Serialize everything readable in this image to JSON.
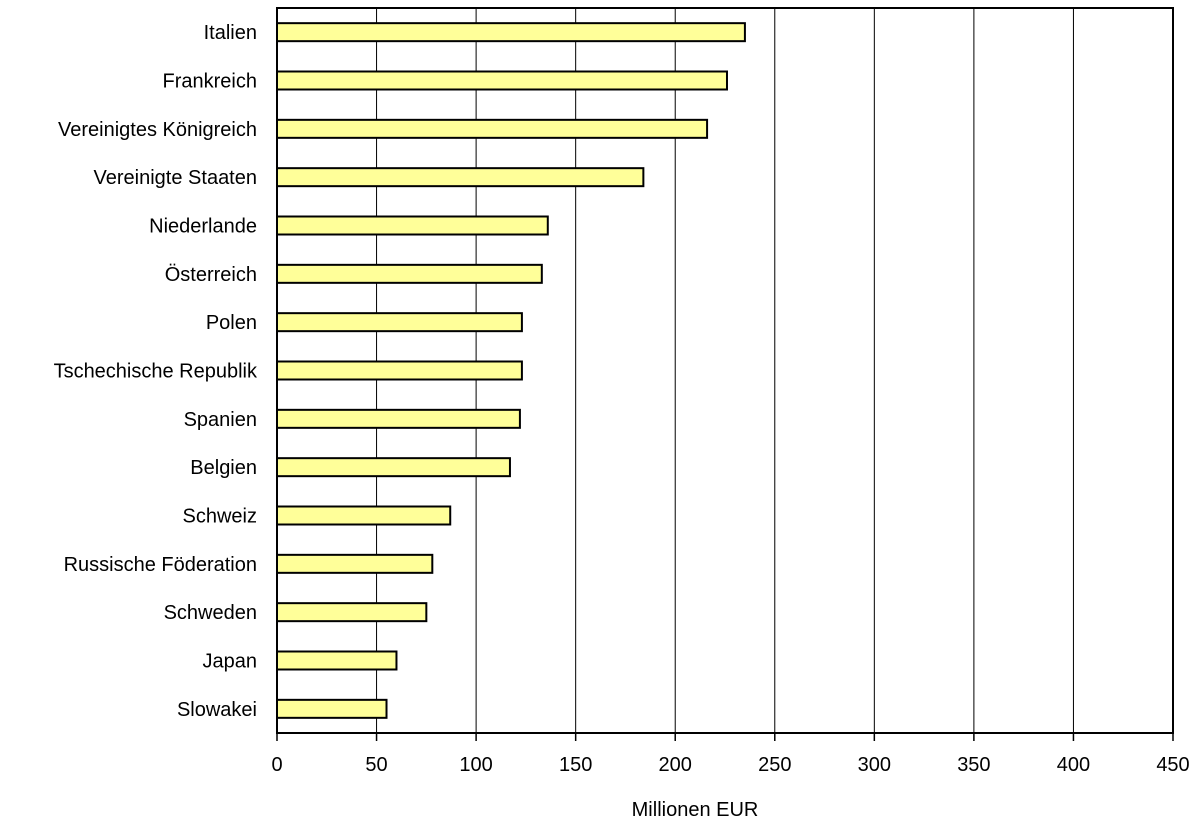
{
  "chart_data": {
    "type": "bar",
    "orientation": "horizontal",
    "categories": [
      "Italien",
      "Frankreich",
      "Vereinigtes Königreich",
      "Vereinigte Staaten",
      "Niederlande",
      "Österreich",
      "Polen",
      "Tschechische Republik",
      "Spanien",
      "Belgien",
      "Schweiz",
      "Russische Föderation",
      "Schweden",
      "Japan",
      "Slowakei"
    ],
    "values": [
      235,
      226,
      216,
      184,
      136,
      133,
      123,
      123,
      122,
      117,
      87,
      78,
      75,
      60,
      55
    ],
    "xlabel": "Millionen EUR",
    "ylabel": "",
    "title": "",
    "xlim": [
      0,
      450
    ],
    "xticks": [
      0,
      50,
      100,
      150,
      200,
      250,
      300,
      350,
      400,
      450
    ],
    "grid": "vertical",
    "legend": "none",
    "bar_color": "#ffff99",
    "bar_edge_color": "#000000"
  }
}
